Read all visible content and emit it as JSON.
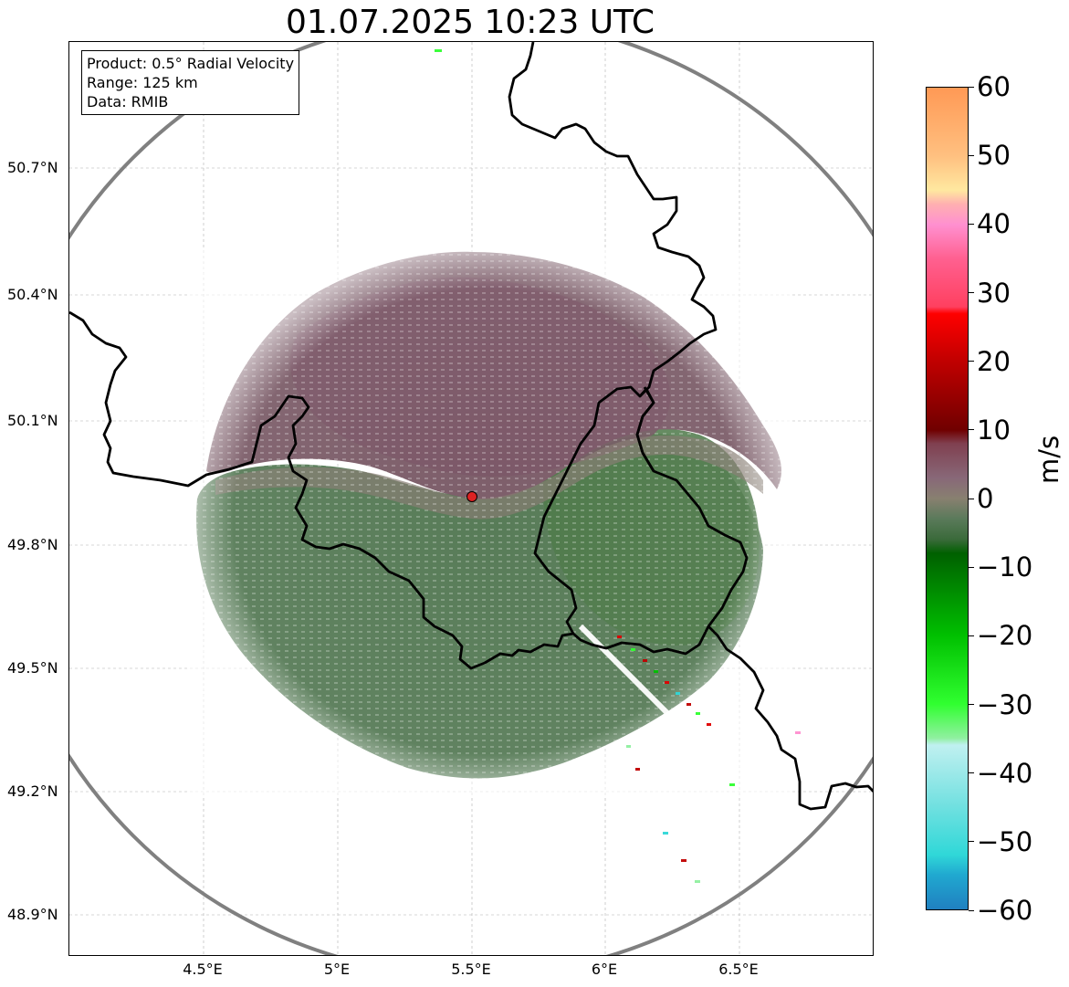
{
  "title": "01.07.2025 10:23 UTC",
  "info": {
    "product": "Product: 0.5° Radial Velocity",
    "range": "Range: 125 km",
    "data": "Data: RMIB"
  },
  "map": {
    "lat_ticks": [
      "50.7°N",
      "50.4°N",
      "50.1°N",
      "49.8°N",
      "49.5°N",
      "49.2°N",
      "48.9°N"
    ],
    "lon_ticks": [
      "4.5°E",
      "5°E",
      "5.5°E",
      "6°E",
      "6.5°E"
    ],
    "radar_site_color": "#dd2222",
    "range_ring_color": "#808080",
    "border_color": "#000000"
  },
  "colorbar": {
    "unit": "m/s",
    "ticks": [
      "60",
      "50",
      "40",
      "30",
      "20",
      "10",
      "0",
      "−10",
      "−20",
      "−30",
      "−40",
      "−50",
      "−60"
    ],
    "stops": [
      {
        "v": 60,
        "c": "#ff9955"
      },
      {
        "v": 50,
        "c": "#ffc080"
      },
      {
        "v": 45,
        "c": "#ffe8a0"
      },
      {
        "v": 43,
        "c": "#ffb0b0"
      },
      {
        "v": 40,
        "c": "#ff90d0"
      },
      {
        "v": 35,
        "c": "#ff6090"
      },
      {
        "v": 28,
        "c": "#ff4060"
      },
      {
        "v": 27,
        "c": "#ff0000"
      },
      {
        "v": 20,
        "c": "#c00000"
      },
      {
        "v": 10,
        "c": "#700000"
      },
      {
        "v": 8,
        "c": "#804050"
      },
      {
        "v": 3,
        "c": "#886878"
      },
      {
        "v": 0,
        "c": "#888070"
      },
      {
        "v": -3,
        "c": "#5a7a5a"
      },
      {
        "v": -6,
        "c": "#3a6a3a"
      },
      {
        "v": -8,
        "c": "#006000"
      },
      {
        "v": -20,
        "c": "#00c000"
      },
      {
        "v": -30,
        "c": "#30ff30"
      },
      {
        "v": -35,
        "c": "#90f0a0"
      },
      {
        "v": -36,
        "c": "#c0f0f0"
      },
      {
        "v": -45,
        "c": "#70e0e0"
      },
      {
        "v": -52,
        "c": "#30d8d8"
      },
      {
        "v": -55,
        "c": "#20a8d0"
      },
      {
        "v": -60,
        "c": "#2080c0"
      }
    ]
  }
}
